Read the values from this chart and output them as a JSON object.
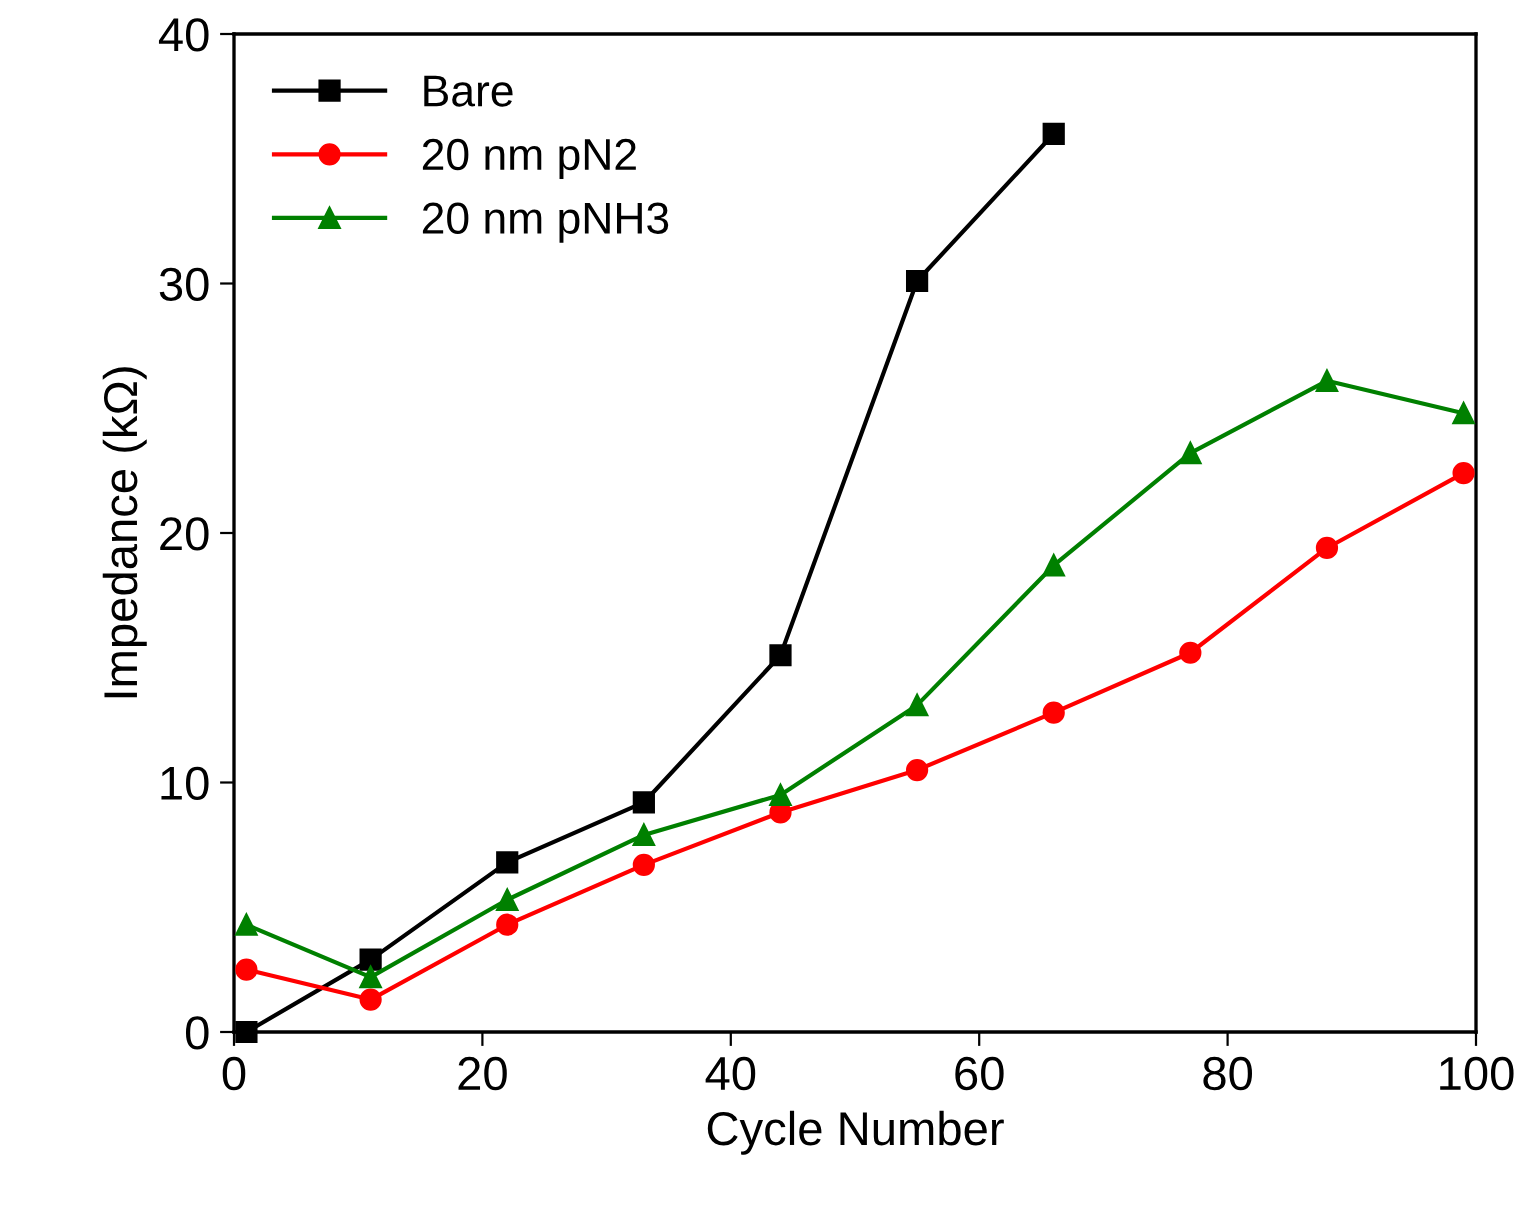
{
  "chart_data": {
    "type": "line",
    "xlabel": "Cycle Number",
    "ylabel": "Impedance (kΩ)",
    "xlim": [
      0,
      100
    ],
    "xticks": [
      0,
      20,
      40,
      60,
      80,
      100
    ],
    "ylim": [
      0,
      40
    ],
    "yticks": [
      0,
      10,
      20,
      30,
      40
    ],
    "grid": false,
    "legend": "top left",
    "series": [
      {
        "name": "Bare",
        "color": "#000000",
        "marker": "square",
        "x": [
          1,
          11,
          22,
          33,
          44,
          55,
          66
        ],
        "values": [
          0,
          2.9,
          6.8,
          9.2,
          15.1,
          30.1,
          36.0
        ]
      },
      {
        "name": "20 nm pN2",
        "color": "#ff0000",
        "marker": "circle",
        "x": [
          1,
          11,
          22,
          33,
          44,
          55,
          66,
          77,
          88,
          99
        ],
        "values": [
          2.5,
          1.3,
          4.3,
          6.7,
          8.8,
          10.5,
          12.8,
          15.2,
          19.4,
          22.4
        ]
      },
      {
        "name": "20 nm pNH3",
        "color": "#008000",
        "marker": "triangle",
        "x": [
          1,
          11,
          22,
          33,
          44,
          55,
          66,
          77,
          88,
          99
        ],
        "values": [
          4.3,
          2.2,
          5.3,
          7.9,
          9.5,
          13.1,
          18.7,
          23.2,
          26.1,
          24.8
        ]
      }
    ]
  }
}
